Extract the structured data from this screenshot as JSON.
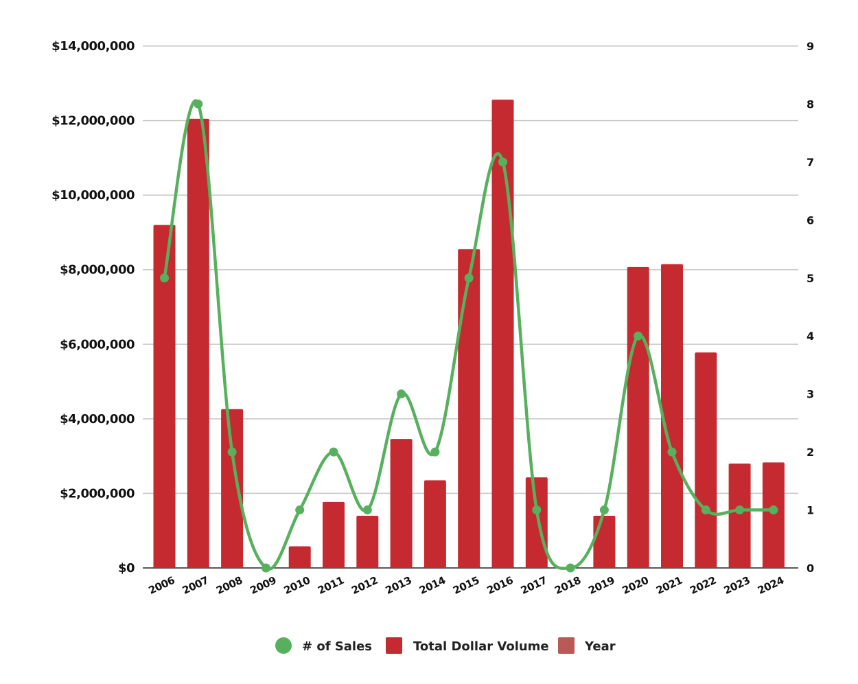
{
  "chart_data": {
    "type": "bar",
    "categories": [
      "2006",
      "2007",
      "2008",
      "2009",
      "2010",
      "2011",
      "2012",
      "2013",
      "2014",
      "2015",
      "2016",
      "2017",
      "2018",
      "2019",
      "2020",
      "2021",
      "2022",
      "2023",
      "2024"
    ],
    "series": [
      {
        "name": "Total Dollar Volume",
        "type": "bar",
        "axis": "left",
        "color": "#c62a31",
        "values": [
          9200000,
          12050000,
          4260000,
          0,
          580000,
          1770000,
          1400000,
          3460000,
          2350000,
          8550000,
          12560000,
          2430000,
          0,
          1400000,
          8070000,
          8150000,
          5780000,
          2800000,
          2830000
        ]
      },
      {
        "name": "# of Sales",
        "type": "line",
        "smooth": true,
        "axis": "right",
        "color": "#57b05d",
        "values": [
          5,
          8,
          2,
          0,
          1,
          2,
          1,
          3,
          2,
          5,
          7,
          1,
          0,
          1,
          4,
          2,
          1,
          1,
          1
        ]
      }
    ],
    "left_axis": {
      "ylim": [
        0,
        14000000
      ],
      "ticks": [
        0,
        2000000,
        4000000,
        6000000,
        8000000,
        10000000,
        12000000,
        14000000
      ],
      "tick_labels": [
        "$0",
        "$2,000,000",
        "$4,000,000",
        "$6,000,000",
        "$8,000,000",
        "$10,000,000",
        "$12,000,000",
        "$14,000,000"
      ]
    },
    "right_axis": {
      "ylim": [
        0,
        9
      ],
      "ticks": [
        0,
        1,
        2,
        3,
        4,
        5,
        6,
        7,
        8,
        9
      ],
      "tick_labels": [
        "0",
        "1",
        "2",
        "3",
        "4",
        "5",
        "6",
        "7",
        "8",
        "9"
      ]
    },
    "grid": true,
    "legend_position": "bottom",
    "legend": [
      {
        "label": "# of Sales",
        "marker": "circle",
        "color": "#57b05d"
      },
      {
        "label": "Total Dollar Volume",
        "marker": "square",
        "color": "#c62a31"
      },
      {
        "label": "Year",
        "marker": "square",
        "color": "#b85a55"
      }
    ],
    "title": "",
    "xlabel": "",
    "ylabel": ""
  }
}
